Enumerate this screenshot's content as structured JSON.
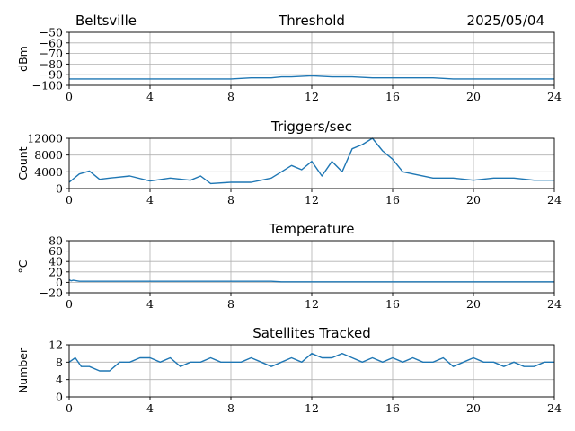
{
  "header": {
    "station": "Beltsville",
    "date": "2025/05/04"
  },
  "chart_data": [
    {
      "type": "line",
      "title": "Threshold",
      "ylabel": "dBm",
      "xlabel": "",
      "xlim": [
        0,
        24
      ],
      "ylim": [
        -100,
        -50
      ],
      "x_ticks": [
        0,
        4,
        8,
        12,
        16,
        20,
        24
      ],
      "y_ticks": [
        -100,
        -90,
        -80,
        -70,
        -60,
        -50
      ],
      "grid": true,
      "color": "#1f77b4",
      "x": [
        0,
        2,
        4,
        6,
        8,
        9,
        10,
        10.5,
        11,
        12,
        13,
        14,
        15,
        16,
        17,
        18,
        19,
        20,
        22,
        24
      ],
      "y": [
        -94,
        -94,
        -94,
        -94,
        -94,
        -93,
        -93,
        -92,
        -92,
        -91,
        -92,
        -92,
        -93,
        -93,
        -93,
        -93,
        -94,
        -94,
        -94,
        -94
      ]
    },
    {
      "type": "line",
      "title": "Triggers/sec",
      "ylabel": "Count",
      "xlabel": "",
      "xlim": [
        0,
        24
      ],
      "ylim": [
        0,
        12000
      ],
      "x_ticks": [
        0,
        4,
        8,
        12,
        16,
        20,
        24
      ],
      "y_ticks": [
        0,
        4000,
        8000,
        12000
      ],
      "grid": true,
      "color": "#1f77b4",
      "x": [
        0,
        0.5,
        1,
        1.5,
        2,
        3,
        4,
        5,
        6,
        6.5,
        7,
        8,
        9,
        9.5,
        10,
        10.5,
        11,
        11.5,
        12,
        12.5,
        13,
        13.5,
        14,
        14.5,
        15,
        15.5,
        16,
        16.5,
        17,
        18,
        19,
        20,
        21,
        22,
        23,
        24
      ],
      "y": [
        1500,
        3500,
        4200,
        2200,
        2500,
        3000,
        1800,
        2500,
        2000,
        3000,
        1200,
        1500,
        1500,
        2000,
        2500,
        4000,
        5500,
        4500,
        6500,
        3000,
        6500,
        4000,
        9500,
        10500,
        12000,
        9000,
        7000,
        4000,
        3500,
        2500,
        2500,
        2000,
        2500,
        2500,
        2000,
        2000
      ]
    },
    {
      "type": "line",
      "title": "Temperature",
      "ylabel": "°C",
      "xlabel": "",
      "xlim": [
        0,
        24
      ],
      "ylim": [
        -20,
        80
      ],
      "x_ticks": [
        0,
        4,
        8,
        12,
        16,
        20,
        24
      ],
      "y_ticks": [
        -20,
        0,
        20,
        40,
        60,
        80
      ],
      "grid": true,
      "color": "#1f77b4",
      "x": [
        0,
        0.1,
        0.2,
        0.5,
        4,
        8,
        10,
        10.5,
        12,
        16,
        20,
        24
      ],
      "y": [
        5,
        3,
        4,
        2,
        2,
        2,
        2,
        1,
        1,
        1,
        1,
        1
      ]
    },
    {
      "type": "line",
      "title": "Satellites Tracked",
      "ylabel": "Number",
      "xlabel": "",
      "xlim": [
        0,
        24
      ],
      "ylim": [
        0,
        12
      ],
      "x_ticks": [
        0,
        4,
        8,
        12,
        16,
        20,
        24
      ],
      "y_ticks": [
        0,
        4,
        8,
        12
      ],
      "grid": true,
      "color": "#1f77b4",
      "x": [
        0,
        0.3,
        0.6,
        1,
        1.5,
        2,
        2.5,
        3,
        3.5,
        4,
        4.5,
        5,
        5.5,
        6,
        6.5,
        7,
        7.5,
        8,
        8.5,
        9,
        9.5,
        10,
        10.5,
        11,
        11.5,
        12,
        12.5,
        13,
        13.5,
        14,
        14.5,
        15,
        15.5,
        16,
        16.5,
        17,
        17.5,
        18,
        18.5,
        19,
        19.5,
        20,
        20.5,
        21,
        21.5,
        22,
        22.5,
        23,
        23.5,
        24
      ],
      "y": [
        8,
        9,
        7,
        7,
        6,
        6,
        8,
        8,
        9,
        9,
        8,
        9,
        7,
        8,
        8,
        9,
        8,
        8,
        8,
        9,
        8,
        7,
        8,
        9,
        8,
        10,
        9,
        9,
        10,
        9,
        8,
        9,
        8,
        9,
        8,
        9,
        8,
        8,
        9,
        7,
        8,
        9,
        8,
        8,
        7,
        8,
        7,
        7,
        8,
        8
      ]
    }
  ]
}
